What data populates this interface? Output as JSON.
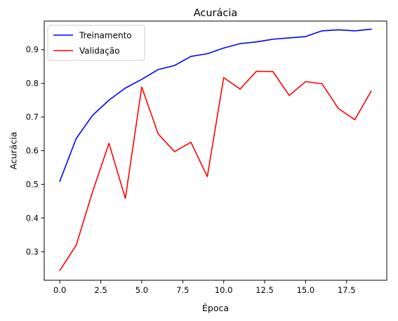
{
  "chart_data": {
    "type": "line",
    "title": "Acurácia",
    "xlabel": "Época",
    "ylabel": "Acurácia",
    "x": [
      0,
      1,
      2,
      3,
      4,
      5,
      6,
      7,
      8,
      9,
      10,
      11,
      12,
      13,
      14,
      15,
      16,
      17,
      18,
      19
    ],
    "xlim": [
      -0.95,
      19.95
    ],
    "ylim": [
      0.215,
      0.985
    ],
    "xticks": [
      0.0,
      2.5,
      5.0,
      7.5,
      10.0,
      12.5,
      15.0,
      17.5
    ],
    "xtick_labels": [
      "0.0",
      "2.5",
      "5.0",
      "7.5",
      "10.0",
      "12.5",
      "15.0",
      "17.5"
    ],
    "yticks": [
      0.3,
      0.4,
      0.5,
      0.6,
      0.7,
      0.8,
      0.9
    ],
    "ytick_labels": [
      "0.3",
      "0.4",
      "0.5",
      "0.6",
      "0.7",
      "0.8",
      "0.9"
    ],
    "grid": false,
    "legend_position": "top-left",
    "series": [
      {
        "name": "Treinamento",
        "color": "#0000ff",
        "values": [
          0.509,
          0.636,
          0.705,
          0.75,
          0.786,
          0.812,
          0.841,
          0.853,
          0.88,
          0.888,
          0.905,
          0.918,
          0.923,
          0.931,
          0.935,
          0.939,
          0.956,
          0.959,
          0.956,
          0.961
        ]
      },
      {
        "name": "Validação",
        "color": "#ff0000",
        "values": [
          0.244,
          0.319,
          0.478,
          0.622,
          0.458,
          0.789,
          0.65,
          0.597,
          0.625,
          0.523,
          0.817,
          0.783,
          0.836,
          0.835,
          0.764,
          0.805,
          0.799,
          0.725,
          0.692,
          0.777
        ]
      }
    ]
  }
}
